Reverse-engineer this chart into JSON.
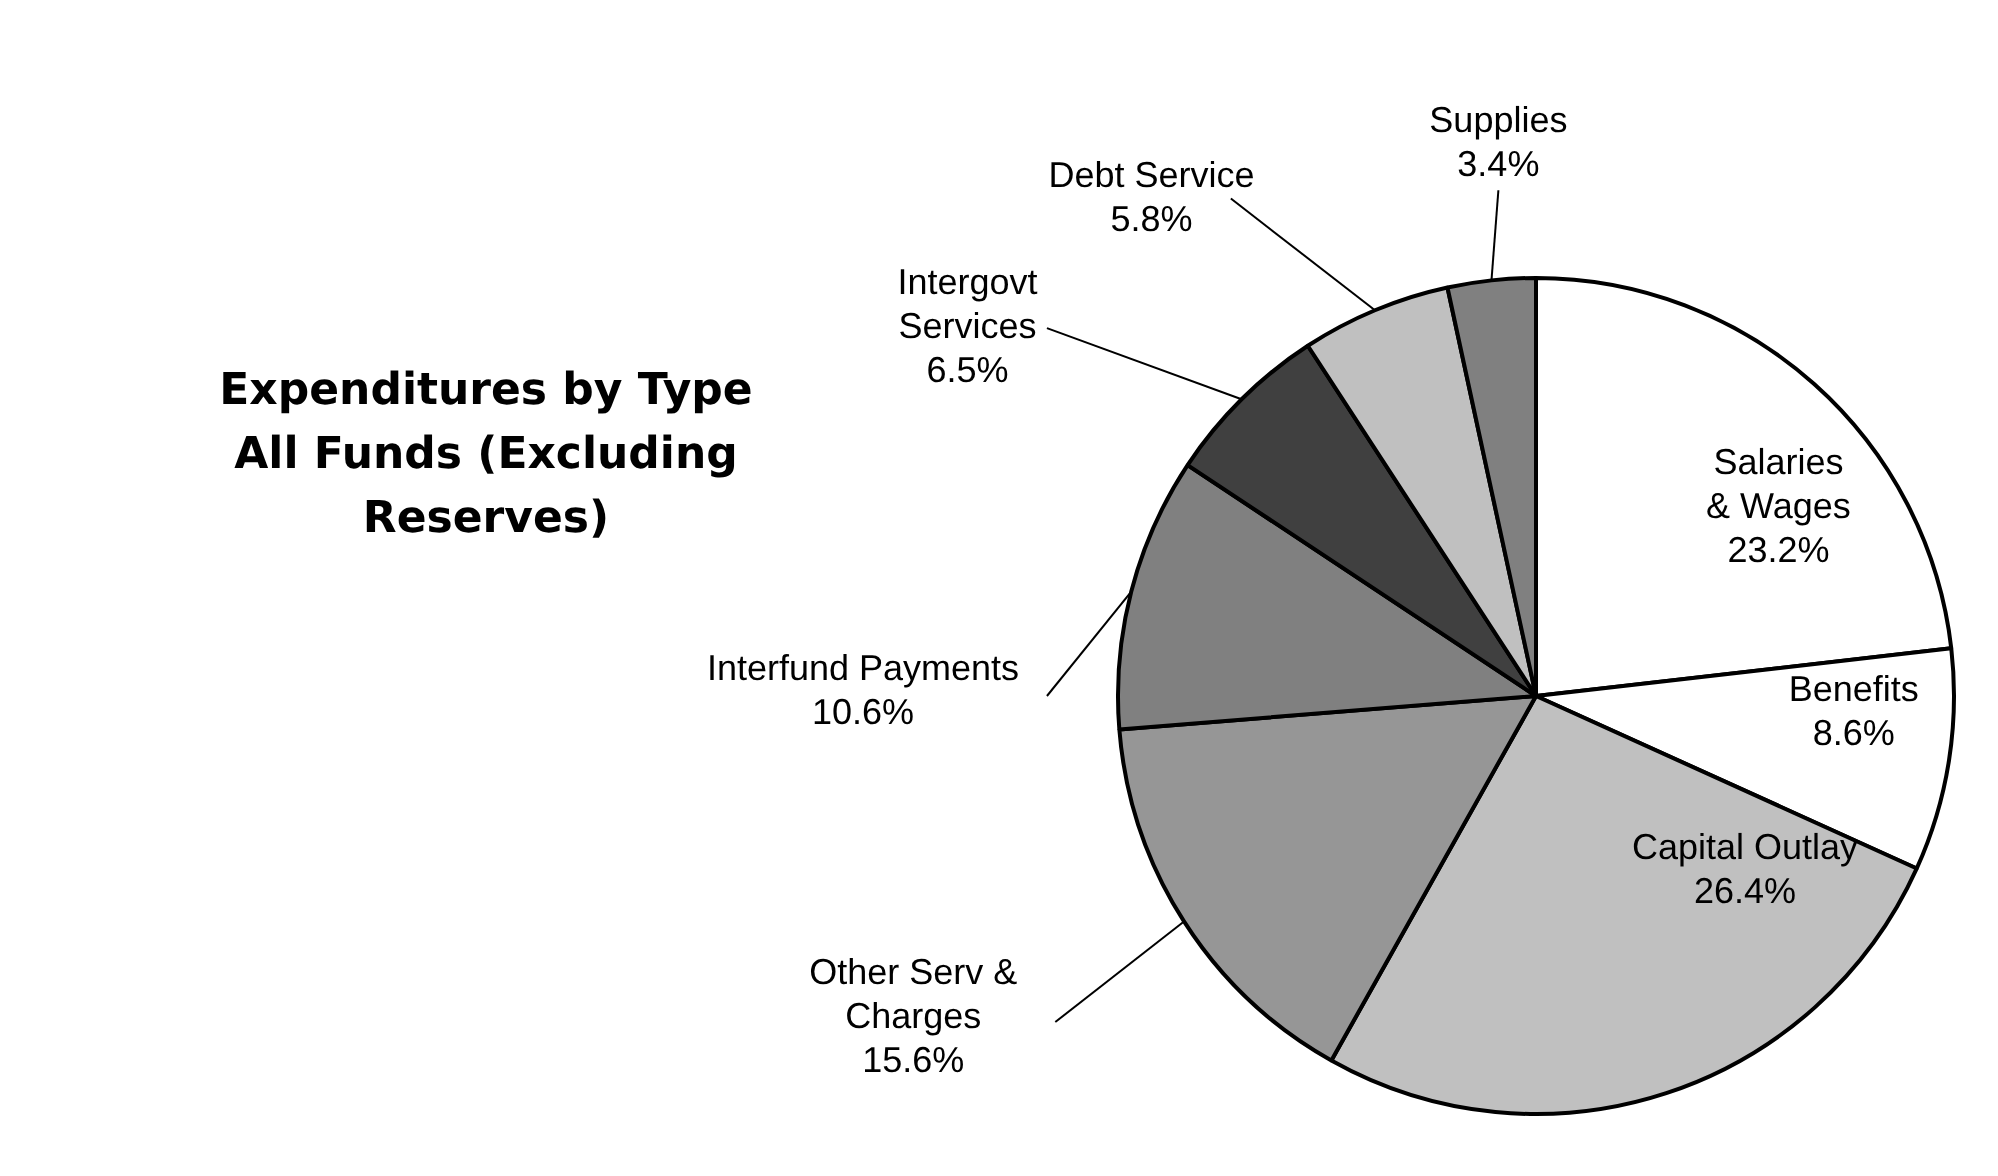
{
  "chart_data": {
    "type": "pie",
    "title": "Expenditures by Type All Funds (Excluding Reserves)",
    "categories": [
      "Salaries & Wages",
      "Benefits",
      "Capital Outlay",
      "Other Serv & Charges",
      "Interfund Payments",
      "Intergovt Services",
      "Debt Service",
      "Supplies"
    ],
    "values": [
      23.2,
      8.6,
      26.4,
      15.6,
      10.6,
      6.5,
      5.8,
      3.4
    ],
    "value_labels": [
      "23.2%",
      "8.6%",
      "26.4%",
      "15.6%",
      "10.6%",
      "6.5%",
      "5.8%",
      "3.4%"
    ],
    "colors": [
      "#ffffff",
      "#ffffff",
      "#c0c0c0",
      "#969696",
      "#808080",
      "#404040",
      "#c0c0c0",
      "#808080"
    ],
    "legend": false
  }
}
